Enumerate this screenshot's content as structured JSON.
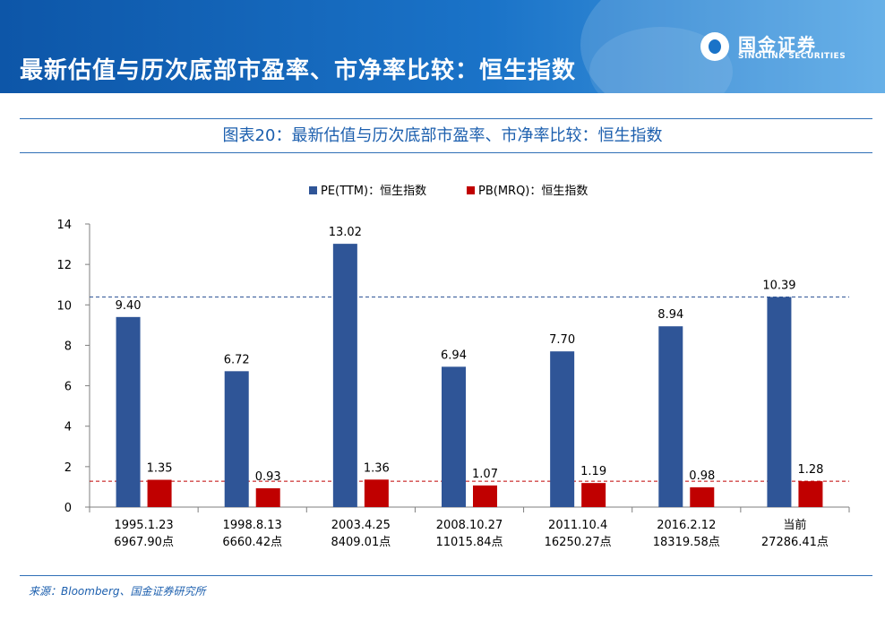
{
  "header": {
    "title": "最新估值与历次底部市盈率、市净率比较：恒生指数",
    "logo_cn": "国金证券",
    "logo_en": "SINOLINK SECURITIES"
  },
  "figure_title": "图表20：最新估值与历次底部市盈率、市净率比较：恒生指数",
  "source": "来源：Bloomberg、国金证券研究所",
  "colors": {
    "pe": "#2f5597",
    "pb": "#c00000",
    "header": "#1a73c8",
    "accent": "#1c5fae"
  },
  "chart_data": {
    "type": "bar",
    "categories": [
      [
        "1995.1.23",
        "6967.90点"
      ],
      [
        "1998.8.13",
        "6660.42点"
      ],
      [
        "2003.4.25",
        "8409.01点"
      ],
      [
        "2008.10.27",
        "11015.84点"
      ],
      [
        "2011.10.4",
        "16250.27点"
      ],
      [
        "2016.2.12",
        "18319.58点"
      ],
      [
        "当前",
        "27286.41点"
      ]
    ],
    "series": [
      {
        "name": "PE(TTM)：恒生指数",
        "values": [
          9.4,
          6.72,
          13.02,
          6.94,
          7.7,
          8.94,
          10.39
        ],
        "labels": [
          "9.40",
          "6.72",
          "13.02",
          "6.94",
          "7.70",
          "8.94",
          "10.39"
        ]
      },
      {
        "name": "PB(MRQ)：恒生指数",
        "values": [
          1.35,
          0.93,
          1.36,
          1.07,
          1.19,
          0.98,
          1.28
        ],
        "labels": [
          "1.35",
          "0.93",
          "1.36",
          "1.07",
          "1.19",
          "0.98",
          "1.28"
        ]
      }
    ],
    "ylim": [
      0,
      14
    ],
    "yticks": [
      0,
      2,
      4,
      6,
      8,
      10,
      12,
      14
    ],
    "reference_lines": [
      {
        "value": 10.39,
        "style": "dashed",
        "color": "#2f5597"
      },
      {
        "value": 1.28,
        "style": "dashed",
        "color": "#c00000"
      }
    ],
    "legend_position": "top-center",
    "grid": false
  }
}
